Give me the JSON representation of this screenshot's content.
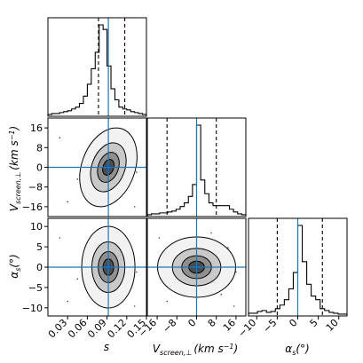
{
  "chart_data": {
    "type": "corner",
    "parameters": [
      {
        "key": "s",
        "label": "s",
        "range": [
          0.0,
          0.15
        ],
        "ticks": [
          "0.03",
          "0.06",
          "0.09",
          "0.12",
          "0.15"
        ],
        "truth": 0.092,
        "quantiles": [
          0.077,
          0.092,
          0.117
        ]
      },
      {
        "key": "v",
        "label": "V_screen,⊥ (km s^-1)",
        "range": [
          -20,
          20
        ],
        "ticks": [
          "-16",
          "-8",
          "0",
          "8",
          "16"
        ],
        "truth": 0,
        "quantiles": [
          -12,
          0,
          8
        ]
      },
      {
        "key": "a",
        "label": "α_s(°)",
        "range": [
          -12,
          12
        ],
        "ticks": [
          "-10",
          "-5",
          "0",
          "5",
          "10"
        ],
        "truth": 0,
        "quantiles": [
          -5,
          0,
          6
        ]
      }
    ],
    "labels": {
      "s": "s",
      "v_main": "V",
      "v_sub": "screen,⊥",
      "v_units": "(km s",
      "v_exp": "−1",
      "a_main": "α",
      "a_sub": "s",
      "a_units": "(°)"
    },
    "histograms": {
      "s": {
        "edges_range": [
          0.0,
          0.15
        ],
        "counts": [
          2,
          3,
          3,
          4,
          5,
          6,
          8,
          10,
          14,
          22,
          35,
          52,
          70,
          100,
          95,
          55,
          30,
          18,
          10,
          8,
          7,
          5,
          4,
          3,
          2
        ]
      },
      "v": {
        "edges_range": [
          -20,
          20
        ],
        "counts": [
          2,
          3,
          3,
          4,
          4,
          5,
          6,
          8,
          11,
          15,
          22,
          35,
          100,
          40,
          25,
          15,
          12,
          12,
          12,
          12,
          8,
          5,
          3,
          2
        ]
      },
      "a": {
        "edges_range": [
          -12,
          12
        ],
        "counts": [
          3,
          3,
          5,
          6,
          4,
          5,
          8,
          12,
          18,
          30,
          48,
          100,
          60,
          35,
          22,
          18,
          8,
          6,
          4,
          3,
          2,
          2
        ]
      }
    },
    "truth_line_color": "#1f77b4",
    "quantile_line_style": "dashed"
  }
}
